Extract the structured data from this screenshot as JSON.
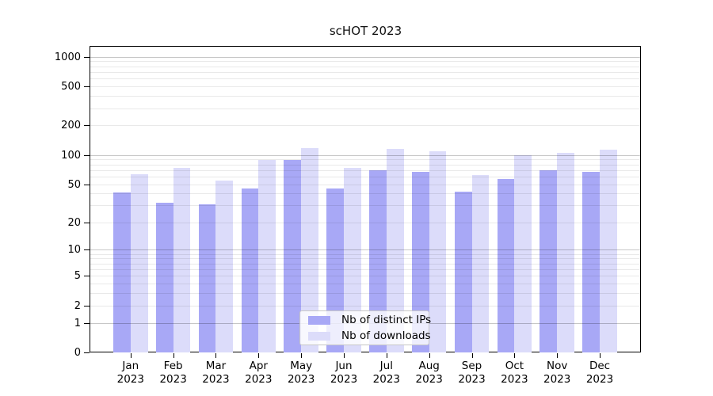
{
  "chart_data": {
    "type": "bar",
    "title": "scHOT 2023",
    "yscale": "log1p",
    "grid": true,
    "legend_position": "lower center",
    "ylim": [
      0,
      1340
    ],
    "ytick_labels": [
      "0",
      "1",
      "2",
      "5",
      "10",
      "20",
      "50",
      "100",
      "200",
      "500",
      "1000"
    ],
    "categories": [
      {
        "month": "Jan",
        "year": "2023"
      },
      {
        "month": "Feb",
        "year": "2023"
      },
      {
        "month": "Mar",
        "year": "2023"
      },
      {
        "month": "Apr",
        "year": "2023"
      },
      {
        "month": "May",
        "year": "2023"
      },
      {
        "month": "Jun",
        "year": "2023"
      },
      {
        "month": "Jul",
        "year": "2023"
      },
      {
        "month": "Aug",
        "year": "2023"
      },
      {
        "month": "Sep",
        "year": "2023"
      },
      {
        "month": "Oct",
        "year": "2023"
      },
      {
        "month": "Nov",
        "year": "2023"
      },
      {
        "month": "Dec",
        "year": "2023"
      }
    ],
    "series": [
      {
        "name": "Nb of distinct IPs",
        "color": "#a8a8f6",
        "values": [
          41,
          32,
          31,
          45,
          88,
          45,
          70,
          67,
          42,
          57,
          70,
          67
        ]
      },
      {
        "name": "Nb of downloads",
        "color": "#dcdcfa",
        "values": [
          63,
          74,
          55,
          88,
          118,
          74,
          115,
          110,
          62,
          100,
          105,
          113
        ]
      }
    ]
  }
}
